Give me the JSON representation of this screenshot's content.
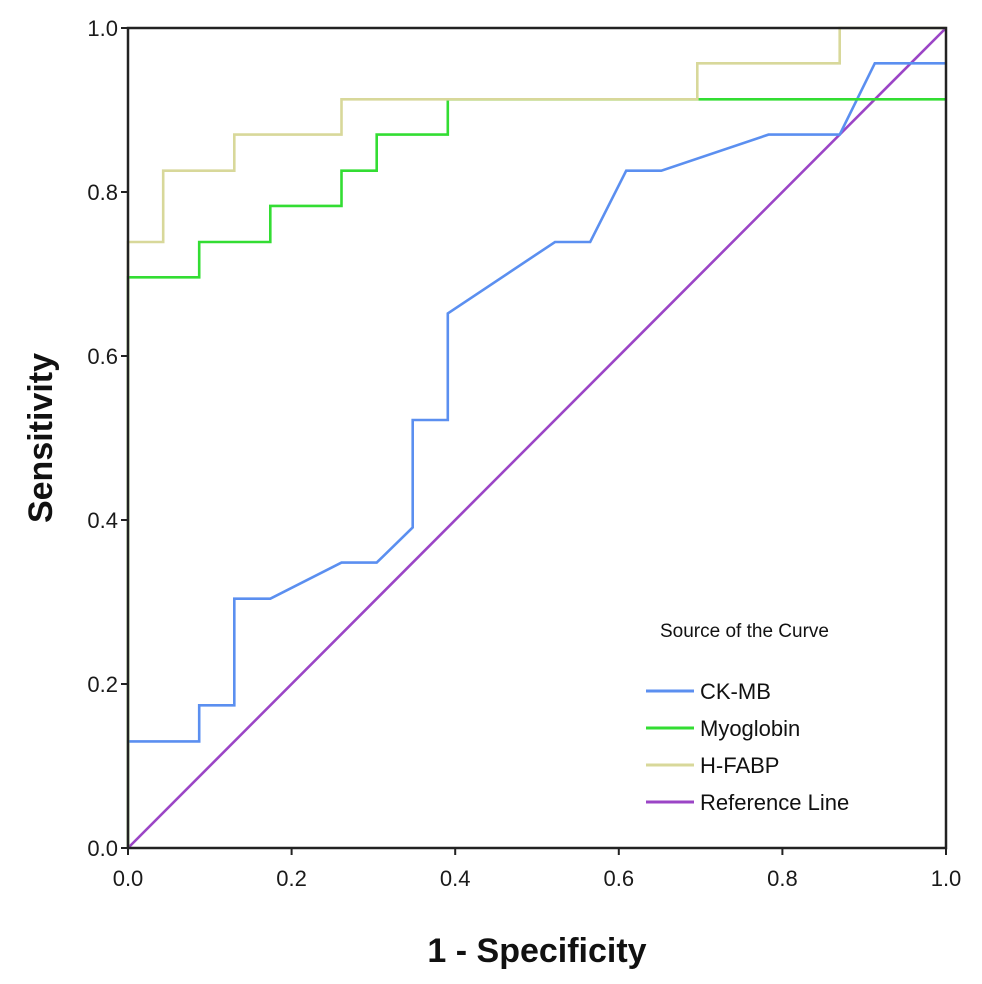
{
  "chart_data": {
    "type": "line",
    "title": "",
    "xlabel": "1 - Specificity",
    "ylabel": "Sensitivity",
    "xlim": [
      0,
      1
    ],
    "ylim": [
      0,
      1
    ],
    "xticks": [
      "0.0",
      "0.2",
      "0.4",
      "0.6",
      "0.8",
      "1.0"
    ],
    "yticks": [
      "0.0",
      "0.2",
      "0.4",
      "0.6",
      "0.8",
      "1.0"
    ],
    "legend": {
      "title": "Source of the Curve",
      "placement": "bottom-right"
    },
    "series": [
      {
        "name": "CK-MB",
        "color": "#5b8ff0",
        "x": [
          0,
          0,
          0.087,
          0.087,
          0.13,
          0.13,
          0.174,
          0.261,
          0.304,
          0.348,
          0.348,
          0.391,
          0.391,
          0.522,
          0.565,
          0.609,
          0.652,
          0.783,
          0.87,
          0.913,
          1.0
        ],
        "y": [
          0,
          0.13,
          0.13,
          0.174,
          0.174,
          0.304,
          0.304,
          0.348,
          0.348,
          0.391,
          0.522,
          0.522,
          0.652,
          0.739,
          0.739,
          0.826,
          0.826,
          0.87,
          0.87,
          0.957,
          0.957
        ]
      },
      {
        "name": "Myoglobin",
        "color": "#33dd33",
        "x": [
          0,
          0,
          0.087,
          0.087,
          0.174,
          0.174,
          0.261,
          0.261,
          0.304,
          0.304,
          0.391,
          0.391,
          1.0
        ],
        "y": [
          0,
          0.696,
          0.696,
          0.739,
          0.739,
          0.783,
          0.783,
          0.826,
          0.826,
          0.87,
          0.87,
          0.913,
          0.913
        ]
      },
      {
        "name": "H-FABP",
        "color": "#d8d89a",
        "x": [
          0,
          0,
          0.043,
          0.043,
          0.13,
          0.13,
          0.261,
          0.261,
          0.696,
          0.696,
          0.87,
          0.87,
          1.0
        ],
        "y": [
          0,
          0.739,
          0.739,
          0.826,
          0.826,
          0.87,
          0.87,
          0.913,
          0.913,
          0.957,
          0.957,
          1.0,
          1.0
        ]
      },
      {
        "name": "Reference Line",
        "color": "#9b45c6",
        "x": [
          0,
          1
        ],
        "y": [
          0,
          1
        ]
      }
    ]
  }
}
